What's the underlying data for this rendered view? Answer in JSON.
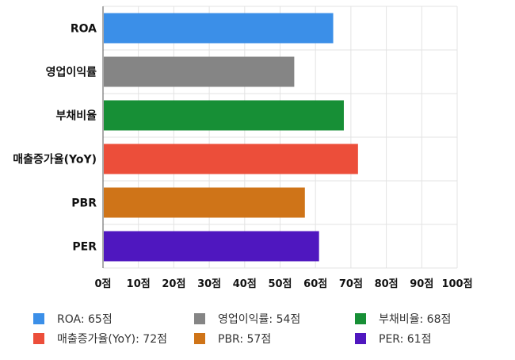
{
  "chart_data": {
    "type": "bar",
    "orientation": "horizontal",
    "categories": [
      "ROA",
      "영업이익률",
      "부채비율",
      "매출증가율(YoY)",
      "PBR",
      "PER"
    ],
    "values": [
      65,
      54,
      68,
      72,
      57,
      61
    ],
    "colors": [
      "#3b8fe8",
      "#858585",
      "#178f36",
      "#ec4e3a",
      "#cf7418",
      "#4f17bf"
    ],
    "xlim": [
      0,
      100
    ],
    "x_ticks": [
      0,
      10,
      20,
      30,
      40,
      50,
      60,
      70,
      80,
      90,
      100
    ],
    "tick_suffix": "점",
    "grid": true,
    "legend": {
      "position": "bottom",
      "entries": [
        {
          "label": "ROA: 65점",
          "color": "#3b8fe8"
        },
        {
          "label": "영업이익률: 54점",
          "color": "#858585"
        },
        {
          "label": "부채비율: 68점",
          "color": "#178f36"
        },
        {
          "label": "매출증가율(YoY): 72점",
          "color": "#ec4e3a"
        },
        {
          "label": "PBR: 57점",
          "color": "#cf7418"
        },
        {
          "label": "PER: 61점",
          "color": "#4f17bf"
        }
      ]
    }
  }
}
